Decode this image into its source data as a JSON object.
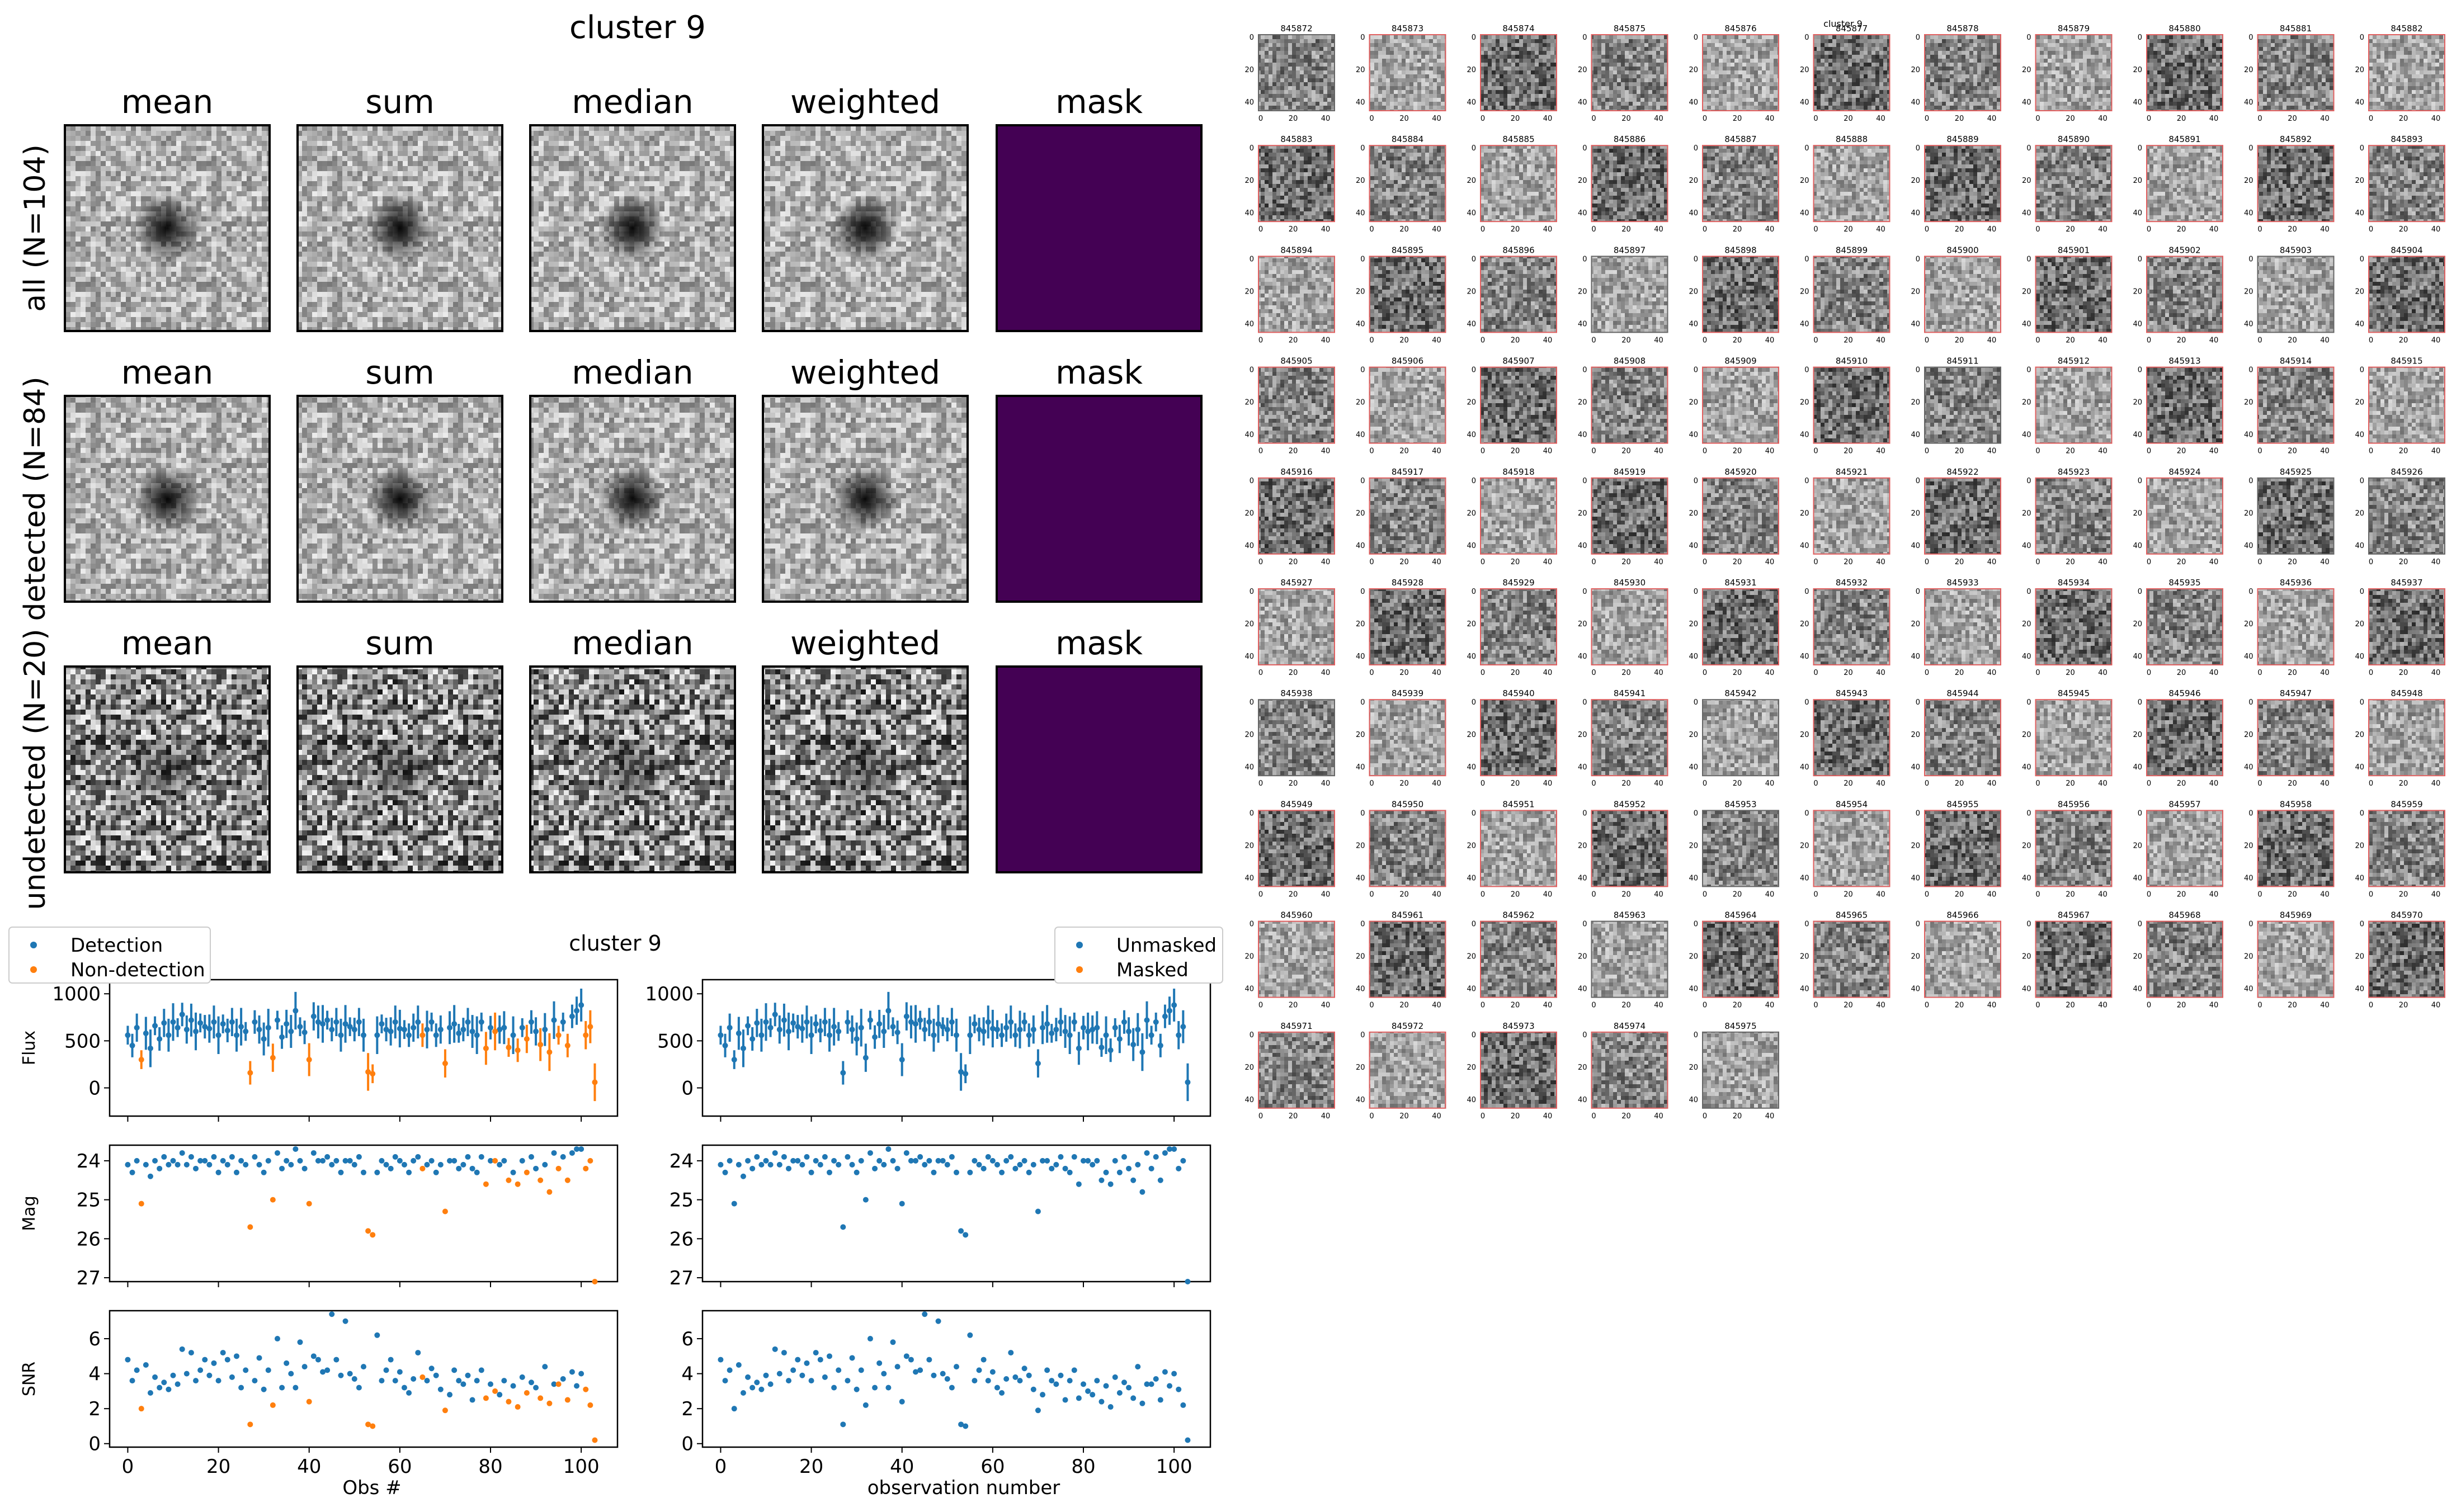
{
  "stacks": {
    "title": "cluster 9",
    "column_titles": [
      "mean",
      "sum",
      "median",
      "weighted",
      "mask"
    ],
    "row_labels": [
      "all (N=104)",
      "detected (N=84)",
      "undetected (N=20)"
    ],
    "mask_color": "#440154"
  },
  "lightcurve": {
    "title": "cluster 9",
    "left_legend": [
      "Detection",
      "Non-detection"
    ],
    "right_legend": [
      "Unmasked",
      "Masked"
    ],
    "left_xlabel": "Obs #",
    "right_xlabel": "observation number",
    "ylabels": [
      "Flux",
      "Mag",
      "SNR"
    ],
    "x_ticks": [
      "0",
      "20",
      "40",
      "60",
      "80",
      "100"
    ],
    "flux_ticks": [
      "0",
      "500",
      "1000"
    ],
    "mag_ticks": [
      "24",
      "25",
      "26",
      "27"
    ],
    "snr_ticks": [
      "0",
      "2",
      "4",
      "6"
    ],
    "colors": {
      "blue": "#1f77b4",
      "orange": "#ff7f0e"
    }
  },
  "chart_data": [
    {
      "type": "scatter",
      "panel": "Flux vs Obs # (left)",
      "xlabel": "Obs #",
      "ylabel": "Flux",
      "xlim": [
        -4,
        108
      ],
      "ylim": [
        -300,
        1150
      ],
      "series": [
        {
          "name": "Detection",
          "x": [
            0,
            1,
            2,
            4,
            5,
            6,
            7,
            8,
            9,
            10,
            11,
            12,
            13,
            14,
            15,
            16,
            17,
            18,
            19,
            20,
            21,
            22,
            23,
            24,
            25,
            26,
            28,
            29,
            30,
            31,
            33,
            34,
            35,
            36,
            37,
            38,
            39,
            41,
            42,
            43,
            44,
            45,
            46,
            47,
            48,
            49,
            50,
            51,
            52,
            55,
            56,
            57,
            58,
            59,
            60,
            61,
            62,
            63,
            64,
            66,
            67,
            68,
            69,
            71,
            72,
            73,
            74,
            75,
            76,
            77,
            78,
            80,
            82,
            83,
            85,
            87,
            89,
            90,
            92,
            94,
            96,
            98,
            99,
            100
          ],
          "y": [
            560,
            450,
            640,
            580,
            420,
            660,
            520,
            690,
            560,
            700,
            640,
            780,
            620,
            720,
            600,
            690,
            650,
            630,
            700,
            560,
            680,
            610,
            700,
            560,
            650,
            600,
            700,
            620,
            520,
            640,
            720,
            540,
            680,
            600,
            820,
            650,
            590,
            760,
            700,
            680,
            720,
            620,
            700,
            560,
            680,
            650,
            620,
            700,
            560,
            560,
            680,
            620,
            600,
            700,
            630,
            620,
            560,
            640,
            700,
            620,
            700,
            560,
            620,
            640,
            680,
            580,
            620,
            700,
            600,
            560,
            700,
            640,
            620,
            640,
            560,
            640,
            700,
            600,
            620,
            720,
            700,
            760,
            820,
            880
          ]
        },
        {
          "name": "Non-detection",
          "x": [
            3,
            27,
            32,
            40,
            53,
            54,
            65,
            70,
            79,
            81,
            84,
            86,
            88,
            91,
            93,
            95,
            97,
            101,
            102,
            103
          ],
          "y": [
            300,
            160,
            320,
            300,
            170,
            150,
            560,
            260,
            420,
            600,
            430,
            400,
            520,
            460,
            380,
            560,
            450,
            560,
            650,
            60
          ]
        }
      ]
    },
    {
      "type": "scatter",
      "panel": "Mag vs Obs # (left)",
      "xlabel": "Obs #",
      "ylabel": "Mag",
      "xlim": [
        -4,
        108
      ],
      "ylim": [
        27.1,
        23.6
      ],
      "series": [
        {
          "name": "Detection",
          "x": [
            0,
            1,
            2,
            4,
            5,
            6,
            7,
            8,
            9,
            10,
            11,
            12,
            13,
            14,
            15,
            16,
            17,
            18,
            19,
            20,
            21,
            22,
            23,
            24,
            25,
            26,
            28,
            29,
            30,
            31,
            33,
            34,
            35,
            36,
            37,
            38,
            39,
            41,
            42,
            43,
            44,
            45,
            46,
            47,
            48,
            49,
            50,
            51,
            52,
            55,
            56,
            57,
            58,
            59,
            60,
            61,
            62,
            63,
            64,
            66,
            67,
            68,
            69,
            71,
            72,
            73,
            74,
            75,
            76,
            77,
            78,
            80,
            82,
            83,
            85,
            87,
            89,
            90,
            92,
            94,
            96,
            98,
            99,
            100
          ],
          "y": [
            24.1,
            24.3,
            24.0,
            24.1,
            24.4,
            24.0,
            24.2,
            23.9,
            24.1,
            24.0,
            24.1,
            23.8,
            24.1,
            23.9,
            24.2,
            24.0,
            24.0,
            24.1,
            23.9,
            24.3,
            24.0,
            24.1,
            23.9,
            24.3,
            24.0,
            24.1,
            23.9,
            24.1,
            24.3,
            24.0,
            23.8,
            24.2,
            24.0,
            24.1,
            23.7,
            24.0,
            24.2,
            23.8,
            24.0,
            24.0,
            23.9,
            24.1,
            24.0,
            24.3,
            24.0,
            24.0,
            24.1,
            23.9,
            24.3,
            24.3,
            24.0,
            24.1,
            24.2,
            23.9,
            24.0,
            24.1,
            24.3,
            24.0,
            23.9,
            24.1,
            24.0,
            24.3,
            24.1,
            24.0,
            24.0,
            24.2,
            24.1,
            23.9,
            24.2,
            24.3,
            23.9,
            24.0,
            24.1,
            24.0,
            24.3,
            24.0,
            23.9,
            24.2,
            24.1,
            23.8,
            23.9,
            23.8,
            23.7,
            23.7
          ]
        },
        {
          "name": "Non-detection",
          "x": [
            3,
            27,
            32,
            40,
            53,
            54,
            65,
            70,
            79,
            81,
            84,
            86,
            88,
            91,
            93,
            95,
            97,
            101,
            102,
            103
          ],
          "y": [
            25.1,
            25.7,
            25.0,
            25.1,
            25.8,
            25.9,
            24.2,
            25.3,
            24.6,
            24.0,
            24.5,
            24.6,
            24.3,
            24.5,
            24.8,
            24.2,
            24.5,
            24.2,
            24.0,
            27.1
          ]
        }
      ]
    },
    {
      "type": "scatter",
      "panel": "SNR vs Obs # (left)",
      "xlabel": "Obs #",
      "ylabel": "SNR",
      "xlim": [
        -4,
        108
      ],
      "ylim": [
        -0.2,
        7.6
      ],
      "series": [
        {
          "name": "Detection",
          "x": [
            0,
            1,
            2,
            4,
            5,
            6,
            7,
            8,
            9,
            10,
            11,
            12,
            13,
            14,
            15,
            16,
            17,
            18,
            19,
            20,
            21,
            22,
            23,
            24,
            25,
            26,
            28,
            29,
            30,
            31,
            33,
            34,
            35,
            36,
            37,
            38,
            39,
            41,
            42,
            43,
            44,
            45,
            46,
            47,
            48,
            49,
            50,
            51,
            52,
            55,
            56,
            57,
            58,
            59,
            60,
            61,
            62,
            63,
            64,
            66,
            67,
            68,
            69,
            71,
            72,
            73,
            74,
            75,
            76,
            77,
            78,
            80,
            82,
            83,
            85,
            87,
            89,
            90,
            92,
            94,
            96,
            98,
            99,
            100
          ],
          "y": [
            4.8,
            3.6,
            4.2,
            4.5,
            2.9,
            3.8,
            3.2,
            3.5,
            3.1,
            3.9,
            3.4,
            5.4,
            4.0,
            5.2,
            3.6,
            4.2,
            4.8,
            3.9,
            4.6,
            3.6,
            5.2,
            4.8,
            3.8,
            5.0,
            3.2,
            4.2,
            3.6,
            4.9,
            3.1,
            4.2,
            6.0,
            3.2,
            4.6,
            4.0,
            3.2,
            5.8,
            4.4,
            5.0,
            4.8,
            4.1,
            4.2,
            7.4,
            4.8,
            3.9,
            7.0,
            4.0,
            3.7,
            3.2,
            4.4,
            6.2,
            3.6,
            4.2,
            4.8,
            3.6,
            4.1,
            3.2,
            2.9,
            3.7,
            5.2,
            3.6,
            4.3,
            3.9,
            3.1,
            2.8,
            4.2,
            3.6,
            3.4,
            3.9,
            2.5,
            3.6,
            4.2,
            3.4,
            2.8,
            3.6,
            3.3,
            3.8,
            3.5,
            3.2,
            4.4,
            3.4,
            3.7,
            4.1,
            3.3,
            4.0
          ]
        },
        {
          "name": "Non-detection",
          "x": [
            3,
            27,
            32,
            40,
            53,
            54,
            65,
            70,
            79,
            81,
            84,
            86,
            88,
            91,
            93,
            95,
            97,
            101,
            102,
            103
          ],
          "y": [
            2.0,
            1.1,
            2.2,
            2.4,
            1.1,
            1.0,
            3.8,
            1.9,
            2.6,
            3.0,
            2.4,
            2.1,
            2.9,
            2.6,
            2.3,
            3.4,
            2.5,
            3.1,
            2.2,
            0.2
          ]
        }
      ]
    },
    {
      "type": "grid",
      "panel": "cutout thumbnails (right)",
      "title": "cluster 9",
      "columns": 11,
      "labels": [
        "845872",
        "845873",
        "845874",
        "845875",
        "845876",
        "845877",
        "845878",
        "845879",
        "845880",
        "845881",
        "845882",
        "845883",
        "845884",
        "845885",
        "845886",
        "845887",
        "845888",
        "845889",
        "845890",
        "845891",
        "845892",
        "845893",
        "845894",
        "845895",
        "845896",
        "845897",
        "845898",
        "845899",
        "845900",
        "845901",
        "845902",
        "845903",
        "845904",
        "845905",
        "845906",
        "845907",
        "845908",
        "845909",
        "845910",
        "845911",
        "845912",
        "845913",
        "845914",
        "845915",
        "845916",
        "845917",
        "845918",
        "845919",
        "845920",
        "845921",
        "845922",
        "845923",
        "845924",
        "845925",
        "845926",
        "845927",
        "845928",
        "845929",
        "845930",
        "845931",
        "845932",
        "845933",
        "845934",
        "845935",
        "845936",
        "845937",
        "845938",
        "845939",
        "845940",
        "845941",
        "845942",
        "845943",
        "845944",
        "845945",
        "845946",
        "845947",
        "845948",
        "845949",
        "845950",
        "845951",
        "845952",
        "845953",
        "845954",
        "845955",
        "845956",
        "845957",
        "845958",
        "845959",
        "845960",
        "845961",
        "845962",
        "845963",
        "845964",
        "845965",
        "845966",
        "845967",
        "845968",
        "845969",
        "845970",
        "845971",
        "845972",
        "845973",
        "845974",
        "845975"
      ],
      "masked_indices": [
        1,
        2,
        3,
        4,
        5,
        6,
        7,
        8,
        9,
        10,
        11,
        12,
        13,
        14,
        15,
        16,
        17,
        18,
        19,
        20,
        21,
        22,
        23,
        24,
        26,
        27,
        28,
        29,
        30,
        32,
        33,
        34,
        35,
        36,
        37,
        38,
        40,
        41,
        42,
        43,
        44,
        45,
        46,
        47,
        48,
        49,
        50,
        51,
        52,
        55,
        56,
        57,
        58,
        59,
        60,
        61,
        62,
        63,
        64,
        65,
        67,
        68,
        69,
        71,
        72,
        73,
        74,
        75,
        76,
        77,
        78,
        79,
        80,
        82,
        83,
        84,
        85,
        86,
        87,
        88,
        89,
        90,
        92,
        93,
        94,
        95,
        96,
        97,
        98,
        99,
        100,
        101,
        102
      ],
      "x_ticks": [
        "0",
        "20",
        "40"
      ],
      "y_ticks": [
        "0",
        "20",
        "40"
      ]
    }
  ]
}
